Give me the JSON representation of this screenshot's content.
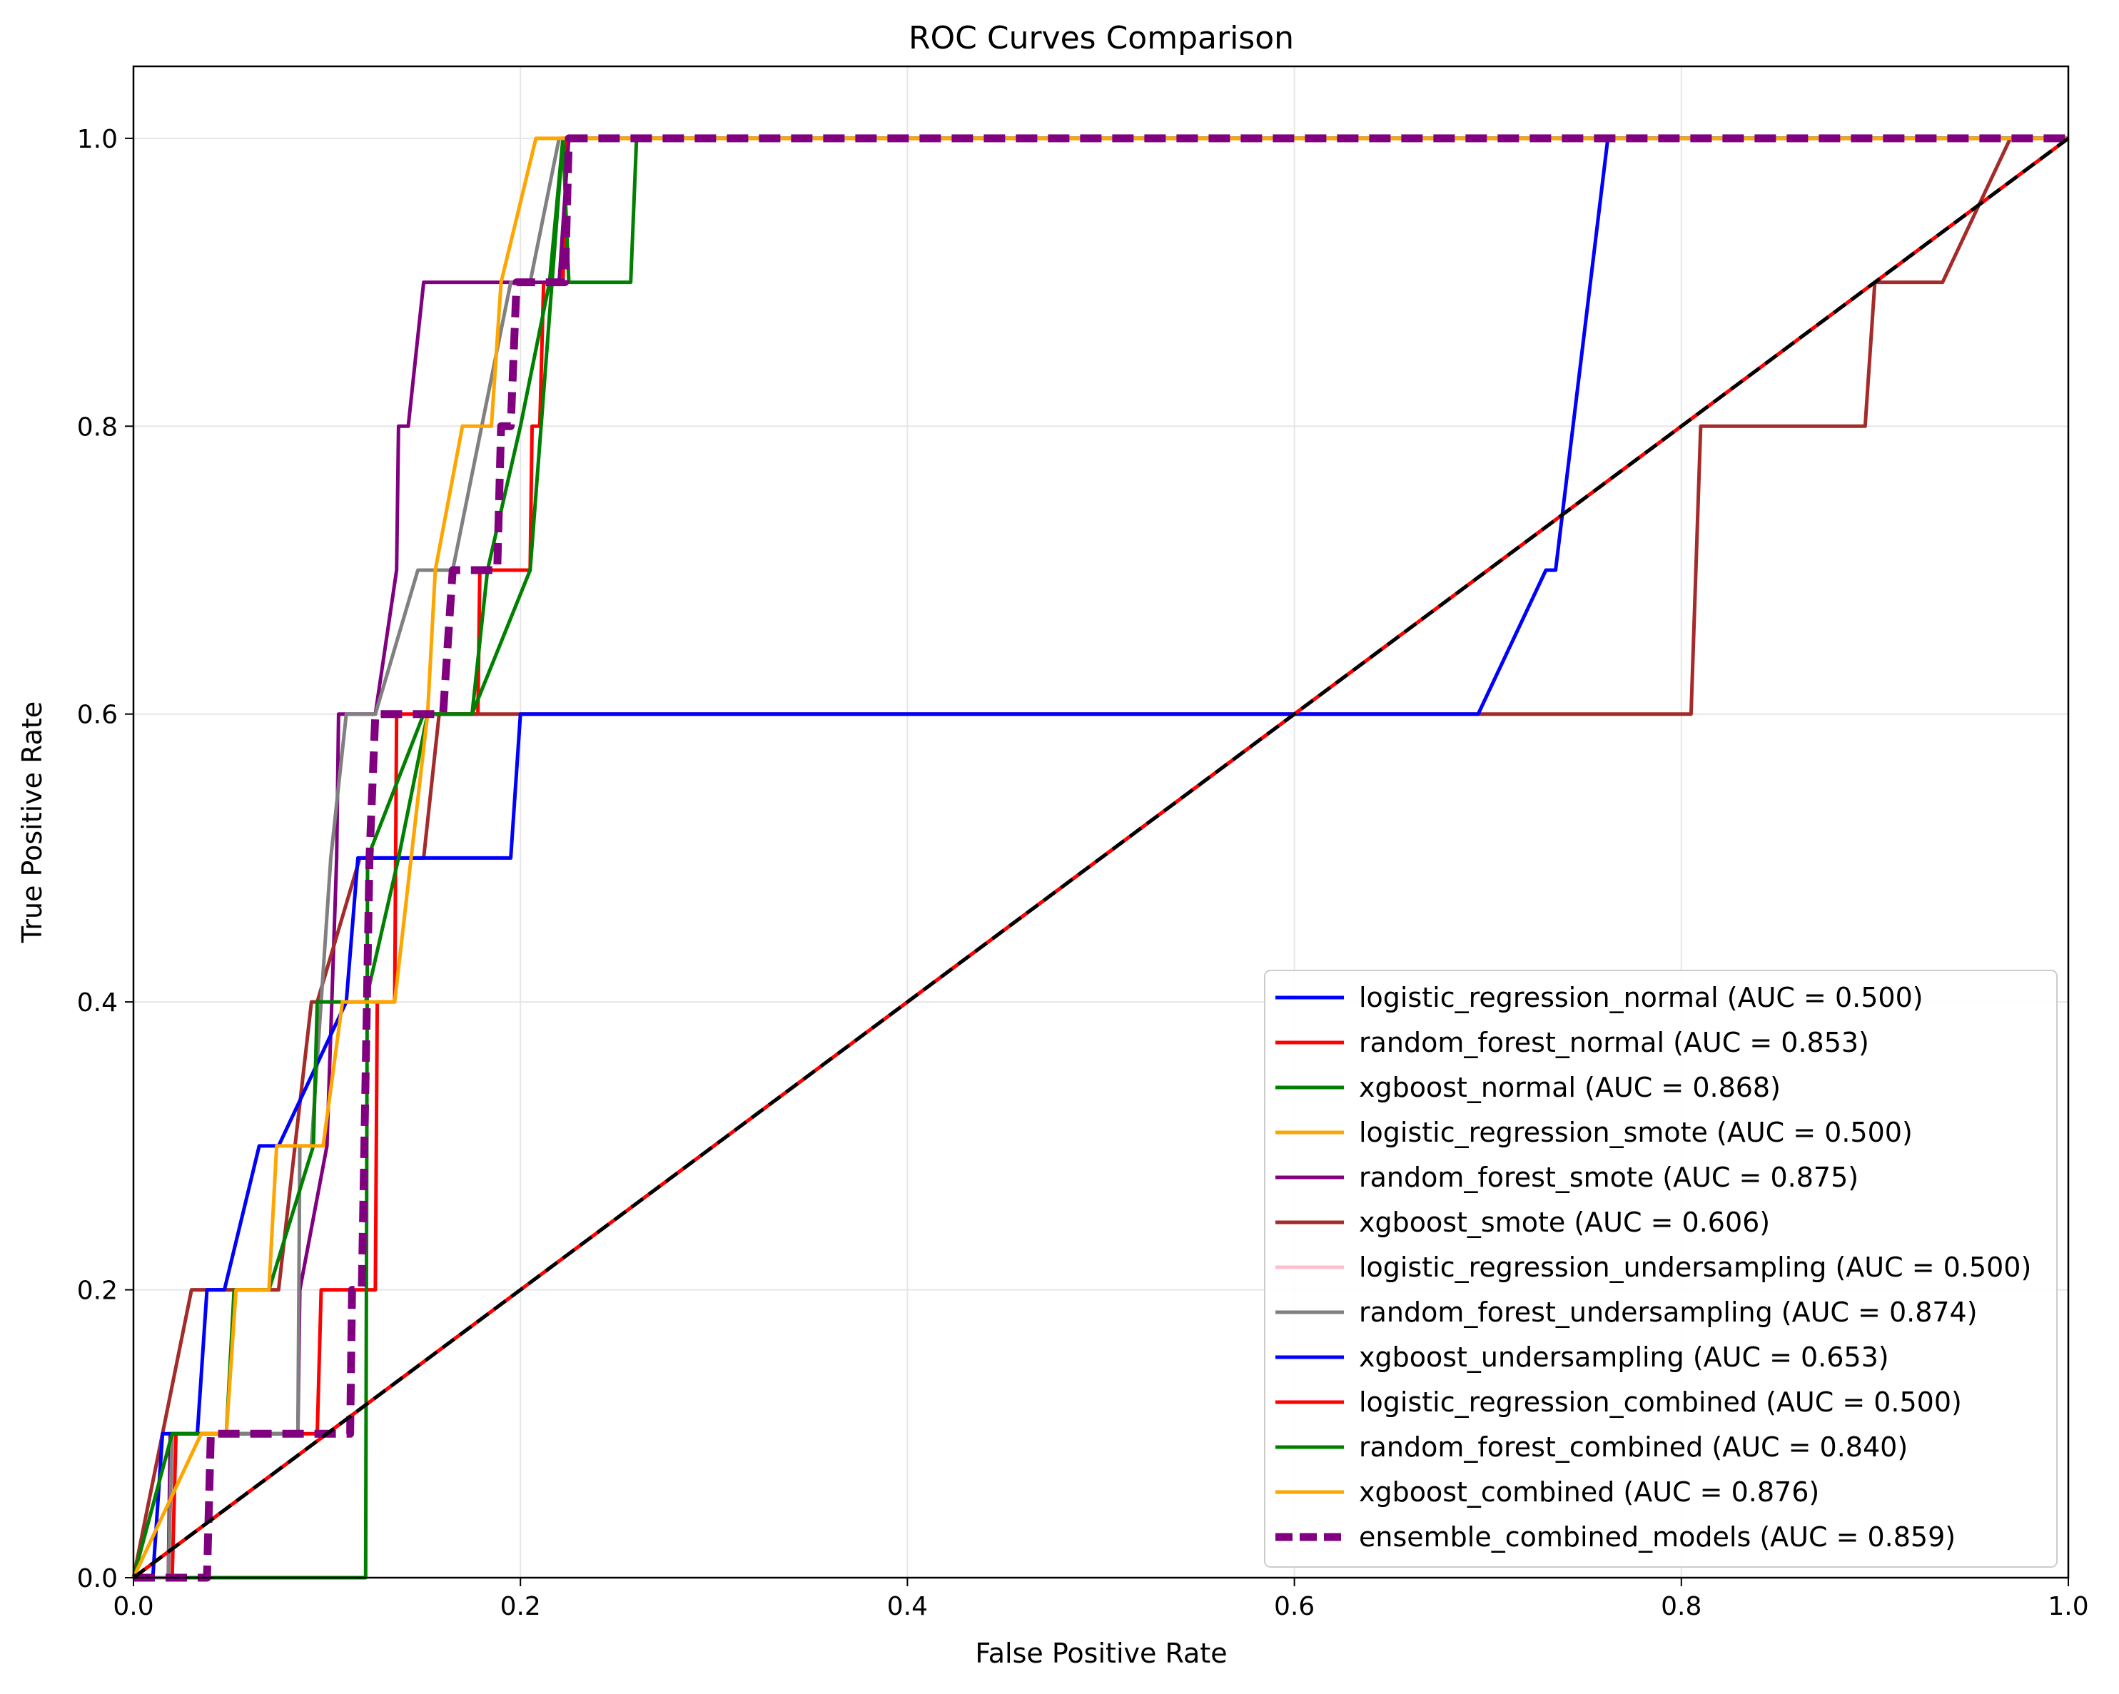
{
  "chart_data": {
    "type": "line",
    "title": "ROC Curves Comparison",
    "xlabel": "False Positive Rate",
    "ylabel": "True Positive Rate",
    "xlim": [
      0.0,
      1.0
    ],
    "ylim": [
      0.0,
      1.05
    ],
    "grid": true,
    "legend_position": "lower right",
    "xticks": [
      "0.0",
      "0.2",
      "0.4",
      "0.6",
      "0.8",
      "1.0"
    ],
    "yticks": [
      "0.0",
      "0.2",
      "0.4",
      "0.6",
      "0.8",
      "1.0"
    ],
    "series": [
      {
        "name": "logistic_regression_normal",
        "label": "logistic_regression_normal (AUC = 0.500)",
        "color": "#0000ff",
        "style": "solid",
        "points": [
          [
            0,
            0
          ],
          [
            1,
            1
          ]
        ]
      },
      {
        "name": "random_forest_normal",
        "label": "random_forest_normal (AUC = 0.853)",
        "color": "#ff0000",
        "style": "solid",
        "points": [
          [
            0,
            0
          ],
          [
            0.02,
            0
          ],
          [
            0.022,
            0.1
          ],
          [
            0.095,
            0.1
          ],
          [
            0.097,
            0.2
          ],
          [
            0.125,
            0.2
          ],
          [
            0.126,
            0.4
          ],
          [
            0.135,
            0.4
          ],
          [
            0.136,
            0.6
          ],
          [
            0.178,
            0.6
          ],
          [
            0.179,
            0.7
          ],
          [
            0.205,
            0.7
          ],
          [
            0.206,
            0.8
          ],
          [
            0.21,
            0.8
          ],
          [
            0.212,
            0.9
          ],
          [
            0.222,
            0.9
          ],
          [
            0.224,
            1.0
          ],
          [
            1,
            1
          ]
        ]
      },
      {
        "name": "xgboost_normal",
        "label": "xgboost_normal (AUC = 0.868)",
        "color": "#008000",
        "style": "solid",
        "points": [
          [
            0,
            0
          ],
          [
            0.12,
            0
          ],
          [
            0.121,
            0.5
          ],
          [
            0.15,
            0.6
          ],
          [
            0.175,
            0.6
          ],
          [
            0.205,
            0.7
          ],
          [
            0.222,
            1.0
          ],
          [
            0.225,
            0.9
          ],
          [
            0.257,
            0.9
          ],
          [
            0.26,
            1.0
          ],
          [
            1,
            1
          ]
        ]
      },
      {
        "name": "logistic_regression_smote",
        "label": "logistic_regression_smote (AUC = 0.500)",
        "color": "#ffa500",
        "style": "solid",
        "points": [
          [
            0,
            0
          ],
          [
            1,
            1
          ]
        ]
      },
      {
        "name": "random_forest_smote",
        "label": "random_forest_smote (AUC = 0.875)",
        "color": "#800080",
        "style": "solid",
        "points": [
          [
            0,
            0
          ],
          [
            0.018,
            0
          ],
          [
            0.019,
            0.1
          ],
          [
            0.085,
            0.1
          ],
          [
            0.086,
            0.2
          ],
          [
            0.1,
            0.3
          ],
          [
            0.105,
            0.5
          ],
          [
            0.106,
            0.6
          ],
          [
            0.11,
            0.6
          ],
          [
            0.125,
            0.6
          ],
          [
            0.136,
            0.7
          ],
          [
            0.137,
            0.8
          ],
          [
            0.142,
            0.8
          ],
          [
            0.15,
            0.9
          ],
          [
            0.22,
            0.9
          ],
          [
            0.225,
            1.0
          ],
          [
            0.23,
            1.0
          ],
          [
            1,
            1
          ]
        ]
      },
      {
        "name": "xgboost_smote",
        "label": "xgboost_smote (AUC = 0.606)",
        "color": "#a52a2a",
        "style": "solid",
        "points": [
          [
            0,
            0
          ],
          [
            0.03,
            0.2
          ],
          [
            0.075,
            0.2
          ],
          [
            0.092,
            0.4
          ],
          [
            0.095,
            0.4
          ],
          [
            0.117,
            0.5
          ],
          [
            0.15,
            0.5
          ],
          [
            0.158,
            0.6
          ],
          [
            0.805,
            0.6
          ],
          [
            0.81,
            0.8
          ],
          [
            0.895,
            0.8
          ],
          [
            0.9,
            0.9
          ],
          [
            0.935,
            0.9
          ],
          [
            0.97,
            1.0
          ],
          [
            1,
            1
          ]
        ]
      },
      {
        "name": "logistic_regression_undersampling",
        "label": "logistic_regression_undersampling (AUC = 0.500)",
        "color": "#ffc0cb",
        "style": "solid",
        "points": [
          [
            0,
            0
          ],
          [
            1,
            1
          ]
        ]
      },
      {
        "name": "random_forest_undersampling",
        "label": "random_forest_undersampling (AUC = 0.874)",
        "color": "#808080",
        "style": "solid",
        "points": [
          [
            0,
            0
          ],
          [
            0.018,
            0
          ],
          [
            0.02,
            0.1
          ],
          [
            0.085,
            0.1
          ],
          [
            0.086,
            0.3
          ],
          [
            0.092,
            0.3
          ],
          [
            0.102,
            0.5
          ],
          [
            0.11,
            0.6
          ],
          [
            0.125,
            0.6
          ],
          [
            0.147,
            0.7
          ],
          [
            0.165,
            0.7
          ],
          [
            0.195,
            0.9
          ],
          [
            0.205,
            0.9
          ],
          [
            0.22,
            1.0
          ],
          [
            1,
            1
          ]
        ]
      },
      {
        "name": "xgboost_undersampling",
        "label": "xgboost_undersampling (AUC = 0.653)",
        "color": "#0000ff",
        "style": "solid",
        "points": [
          [
            0,
            0
          ],
          [
            0.01,
            0
          ],
          [
            0.015,
            0.1
          ],
          [
            0.033,
            0.1
          ],
          [
            0.038,
            0.2
          ],
          [
            0.047,
            0.2
          ],
          [
            0.065,
            0.3
          ],
          [
            0.075,
            0.3
          ],
          [
            0.11,
            0.4
          ],
          [
            0.116,
            0.5
          ],
          [
            0.195,
            0.5
          ],
          [
            0.2,
            0.6
          ],
          [
            0.695,
            0.6
          ],
          [
            0.73,
            0.7
          ],
          [
            0.735,
            0.7
          ],
          [
            0.762,
            1.0
          ],
          [
            1,
            1
          ]
        ]
      },
      {
        "name": "logistic_regression_combined",
        "label": "logistic_regression_combined (AUC = 0.500)",
        "color": "#ff0000",
        "style": "solid",
        "points": [
          [
            0,
            0
          ],
          [
            1,
            1
          ]
        ]
      },
      {
        "name": "random_forest_combined",
        "label": "random_forest_combined (AUC = 0.840)",
        "color": "#008000",
        "style": "solid",
        "points": [
          [
            0,
            0
          ],
          [
            0.02,
            0.1
          ],
          [
            0.048,
            0.1
          ],
          [
            0.052,
            0.2
          ],
          [
            0.07,
            0.2
          ],
          [
            0.093,
            0.3
          ],
          [
            0.095,
            0.4
          ],
          [
            0.12,
            0.4
          ],
          [
            0.137,
            0.5
          ],
          [
            0.152,
            0.6
          ],
          [
            0.175,
            0.6
          ],
          [
            0.183,
            0.7
          ],
          [
            0.2,
            0.8
          ],
          [
            0.215,
            0.9
          ],
          [
            0.222,
            1.0
          ],
          [
            1,
            1
          ]
        ]
      },
      {
        "name": "xgboost_combined",
        "label": "xgboost_combined (AUC = 0.876)",
        "color": "#ffa500",
        "style": "solid",
        "points": [
          [
            0,
            0
          ],
          [
            0.035,
            0.1
          ],
          [
            0.048,
            0.1
          ],
          [
            0.053,
            0.2
          ],
          [
            0.07,
            0.2
          ],
          [
            0.074,
            0.3
          ],
          [
            0.098,
            0.3
          ],
          [
            0.108,
            0.4
          ],
          [
            0.135,
            0.4
          ],
          [
            0.152,
            0.6
          ],
          [
            0.156,
            0.7
          ],
          [
            0.17,
            0.8
          ],
          [
            0.185,
            0.8
          ],
          [
            0.19,
            0.9
          ],
          [
            0.208,
            1.0
          ],
          [
            1,
            1
          ]
        ]
      },
      {
        "name": "ensemble_combined_models",
        "label": "ensemble_combined_models (AUC = 0.859)",
        "color": "#800080",
        "style": "dashed",
        "points": [
          [
            0,
            0
          ],
          [
            0.01,
            0
          ],
          [
            0.038,
            0
          ],
          [
            0.04,
            0.1
          ],
          [
            0.112,
            0.1
          ],
          [
            0.113,
            0.2
          ],
          [
            0.118,
            0.2
          ],
          [
            0.122,
            0.5
          ],
          [
            0.125,
            0.6
          ],
          [
            0.16,
            0.6
          ],
          [
            0.165,
            0.7
          ],
          [
            0.188,
            0.7
          ],
          [
            0.19,
            0.8
          ],
          [
            0.195,
            0.8
          ],
          [
            0.198,
            0.9
          ],
          [
            0.223,
            0.9
          ],
          [
            0.225,
            1.0
          ],
          [
            1,
            1
          ]
        ]
      }
    ],
    "reference_line": {
      "color": "#000000",
      "style": "dashed",
      "points": [
        [
          0,
          0
        ],
        [
          1,
          1
        ]
      ]
    }
  }
}
